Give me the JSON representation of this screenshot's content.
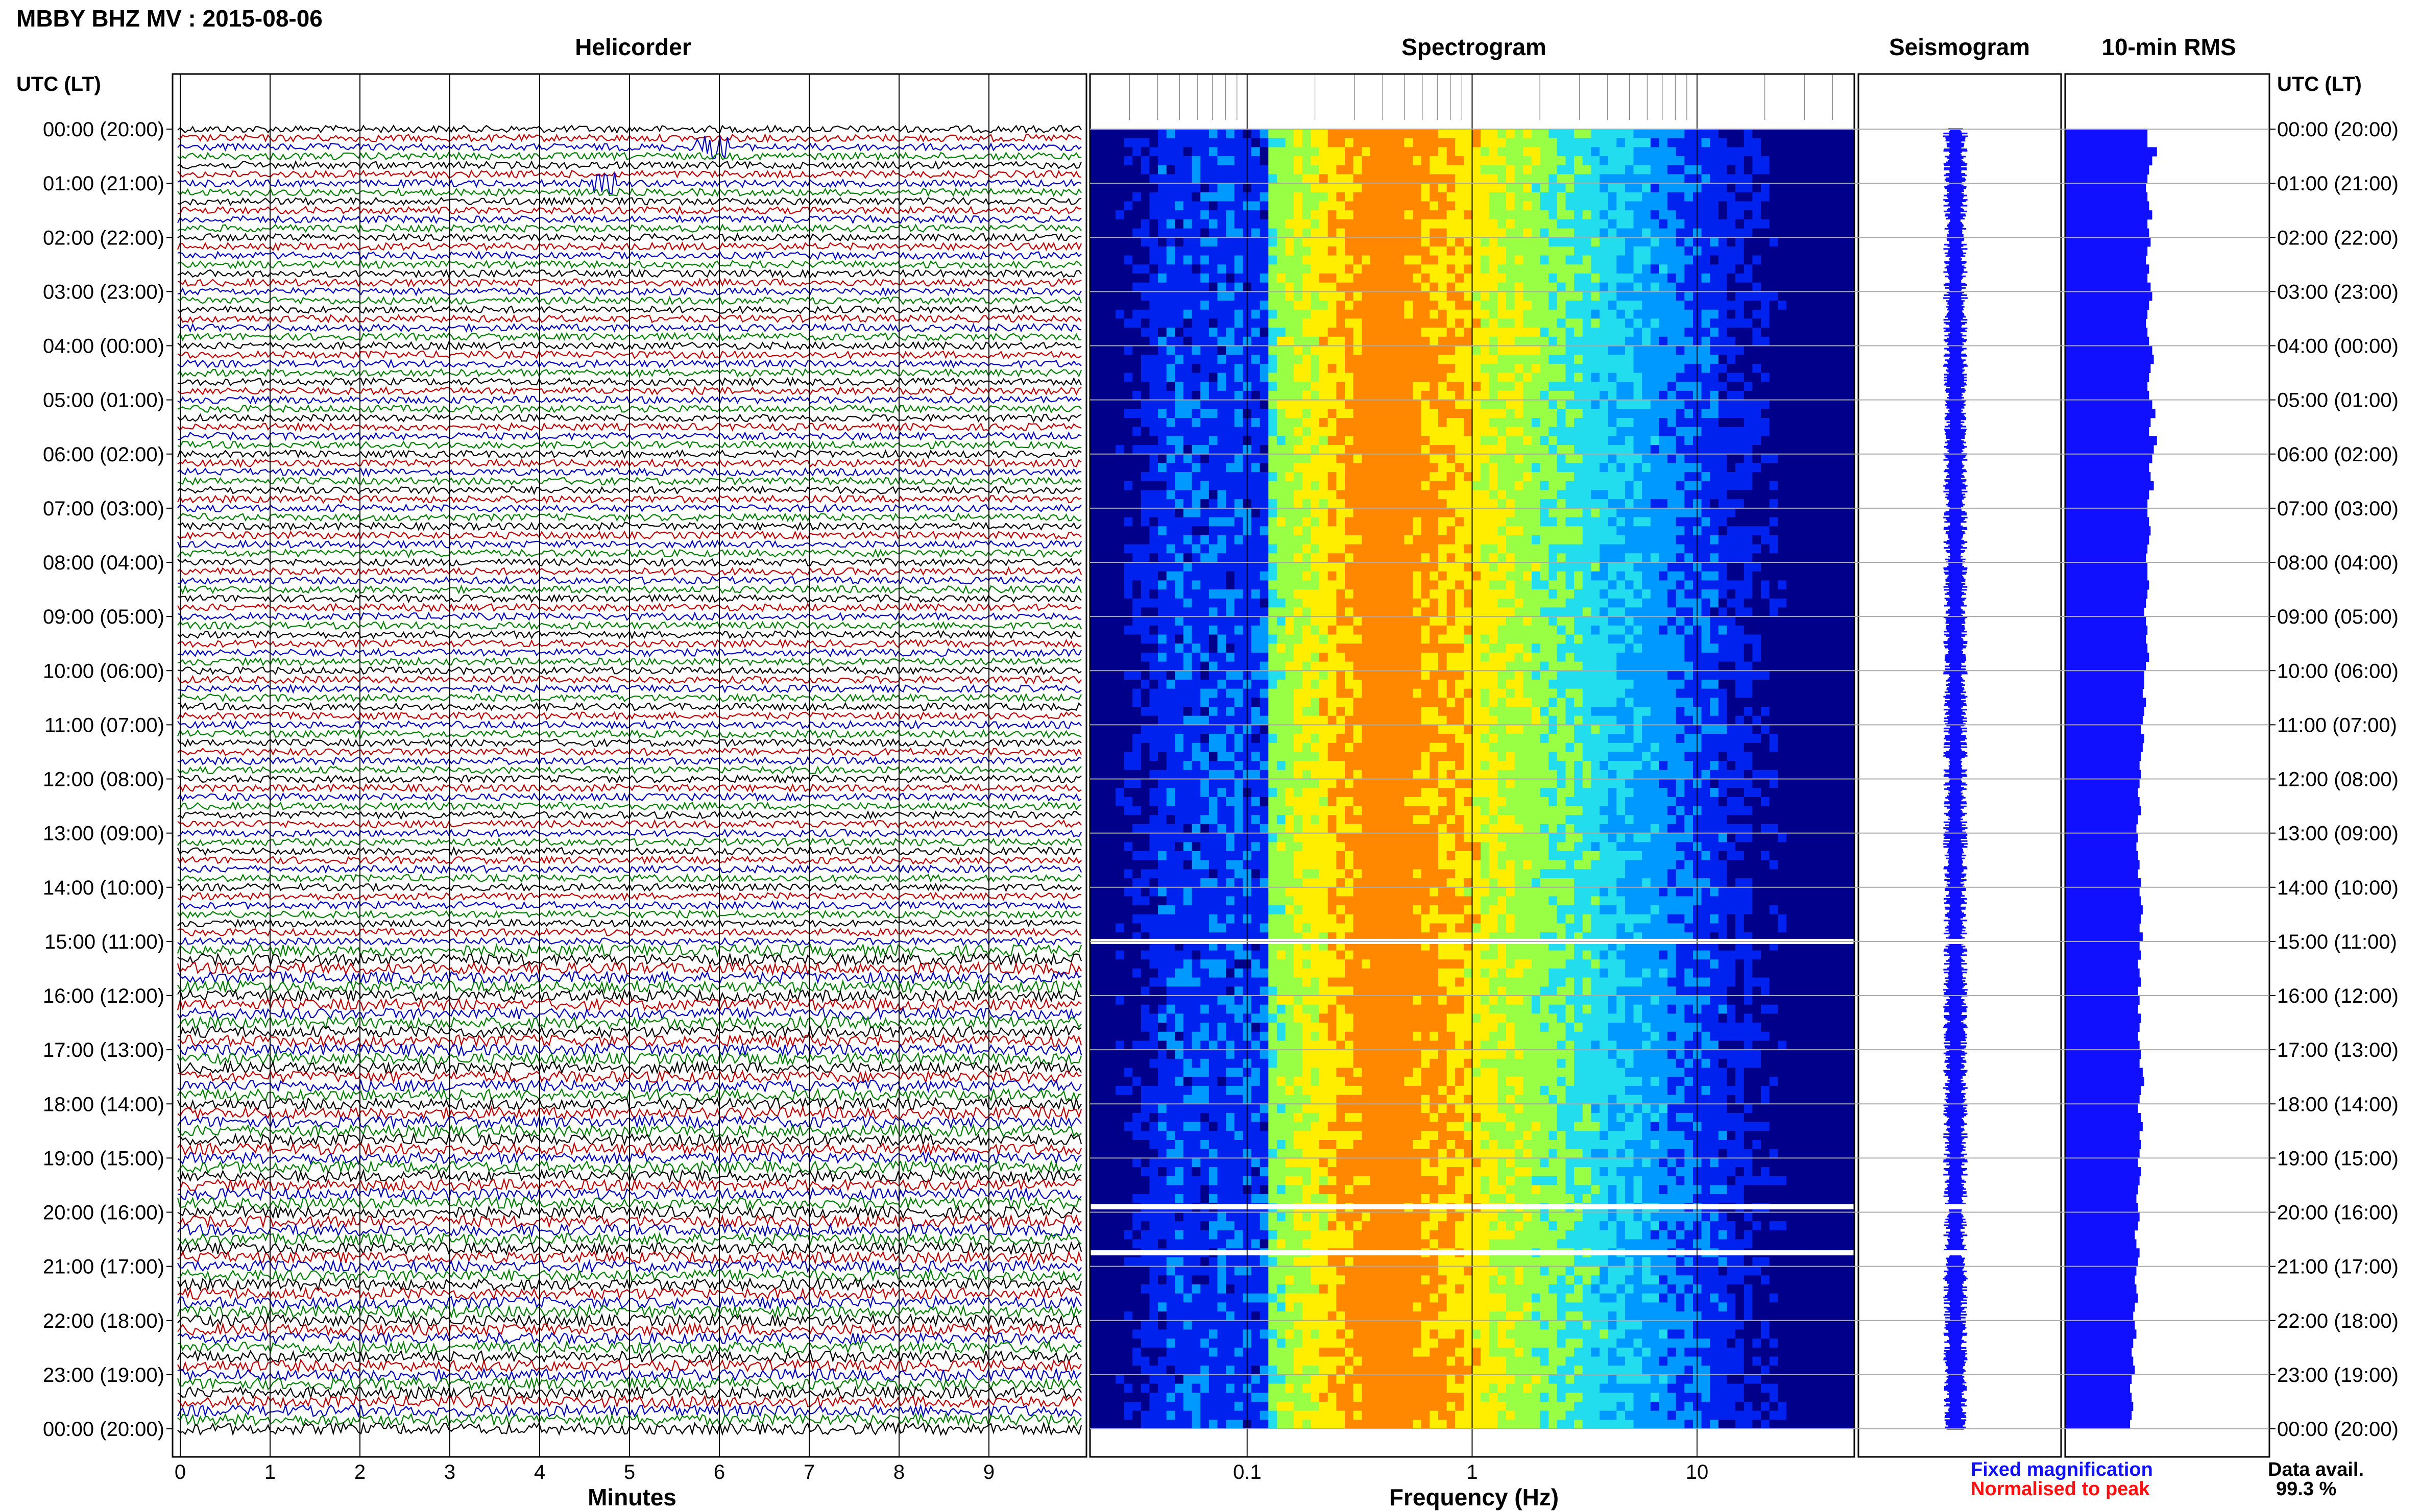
{
  "header": {
    "title": "MBBY BHZ MV : 2015-08-06",
    "left_axis_title": "UTC (LT)",
    "right_axis_title": "UTC (LT)"
  },
  "panels": {
    "helicorder": "Helicorder",
    "spectrogram": "Spectrogram",
    "seismogram": "Seismogram",
    "rms": "10-min RMS"
  },
  "time_labels": [
    "00:00 (20:00)",
    "01:00 (21:00)",
    "02:00 (22:00)",
    "03:00 (23:00)",
    "04:00 (00:00)",
    "05:00 (01:00)",
    "06:00 (02:00)",
    "07:00 (03:00)",
    "08:00 (04:00)",
    "09:00 (05:00)",
    "10:00 (06:00)",
    "11:00 (07:00)",
    "12:00 (08:00)",
    "13:00 (09:00)",
    "14:00 (10:00)",
    "15:00 (11:00)",
    "16:00 (12:00)",
    "17:00 (13:00)",
    "18:00 (14:00)",
    "19:00 (15:00)",
    "20:00 (16:00)",
    "21:00 (17:00)",
    "22:00 (18:00)",
    "23:00 (19:00)",
    "00:00 (20:00)"
  ],
  "helicorder_axis": {
    "label": "Minutes",
    "ticks": [
      "0",
      "1",
      "2",
      "3",
      "4",
      "5",
      "6",
      "7",
      "8",
      "9"
    ]
  },
  "spectrogram_axis": {
    "label": "Frequency (Hz)",
    "ticks": [
      "0.1",
      "1",
      "10"
    ]
  },
  "legend": {
    "fixed": "Fixed magnification",
    "normalised": "Normalised to peak",
    "fixed_color": "#1010ff",
    "normalised_color": "#ff1010"
  },
  "data_availability": {
    "label": "Data avail.",
    "value": "99.3 %"
  },
  "chart_data": {
    "type": "heatmap",
    "helicorder": {
      "x_unit": "minutes",
      "xlim": [
        0,
        10
      ],
      "traces_per_hour": 6,
      "hours": 24,
      "trace_colors": [
        "#000000",
        "#c00000",
        "#0000c0",
        "#008000"
      ]
    },
    "spectrogram": {
      "x_scale": "log",
      "xlim_hz": [
        0.02,
        50
      ],
      "peak_frequency_hz": 0.4,
      "gaps_utc_hours": [
        15.0,
        19.9,
        20.75
      ],
      "colormap": [
        "#00008a",
        "#0022ee",
        "#0099ff",
        "#22ddee",
        "#99ff44",
        "#ffee00",
        "#ff8800"
      ]
    },
    "rms_10min": {
      "color": "#1010ff",
      "values": [
        0.52,
        0.52,
        0.58,
        0.55,
        0.53,
        0.52,
        0.51,
        0.52,
        0.53,
        0.55,
        0.52,
        0.53,
        0.54,
        0.52,
        0.51,
        0.53,
        0.52,
        0.54,
        0.55,
        0.53,
        0.52,
        0.51,
        0.52,
        0.53,
        0.55,
        0.56,
        0.54,
        0.53,
        0.52,
        0.53,
        0.55,
        0.57,
        0.54,
        0.53,
        0.58,
        0.56,
        0.55,
        0.53,
        0.54,
        0.56,
        0.53,
        0.52,
        0.52,
        0.53,
        0.54,
        0.53,
        0.52,
        0.51,
        0.52,
        0.52,
        0.53,
        0.52,
        0.51,
        0.5,
        0.51,
        0.52,
        0.51,
        0.52,
        0.53,
        0.51,
        0.5,
        0.5,
        0.49,
        0.51,
        0.5,
        0.49,
        0.48,
        0.5,
        0.49,
        0.48,
        0.47,
        0.48,
        0.47,
        0.46,
        0.47,
        0.48,
        0.46,
        0.45,
        0.46,
        0.45,
        0.46,
        0.47,
        0.46,
        0.48,
        0.47,
        0.48,
        0.49,
        0.48,
        0.47,
        0.49,
        0.47,
        0.48,
        0.46,
        0.47,
        0.48,
        0.46,
        0.47,
        0.46,
        0.48,
        0.47,
        0.46,
        0.47,
        0.48,
        0.47,
        0.49,
        0.5,
        0.48,
        0.47,
        0.46,
        0.48,
        0.49,
        0.47,
        0.48,
        0.47,
        0.46,
        0.48,
        0.47,
        0.46,
        0.45,
        0.46,
        0.47,
        0.46,
        0.44,
        0.45,
        0.47,
        0.46,
        0.45,
        0.44,
        0.45,
        0.46,
        0.44,
        0.43,
        0.44,
        0.45,
        0.43,
        0.42,
        0.43,
        0.44,
        0.42,
        0.41,
        0.42,
        0.43,
        0.42,
        0.41
      ]
    }
  }
}
